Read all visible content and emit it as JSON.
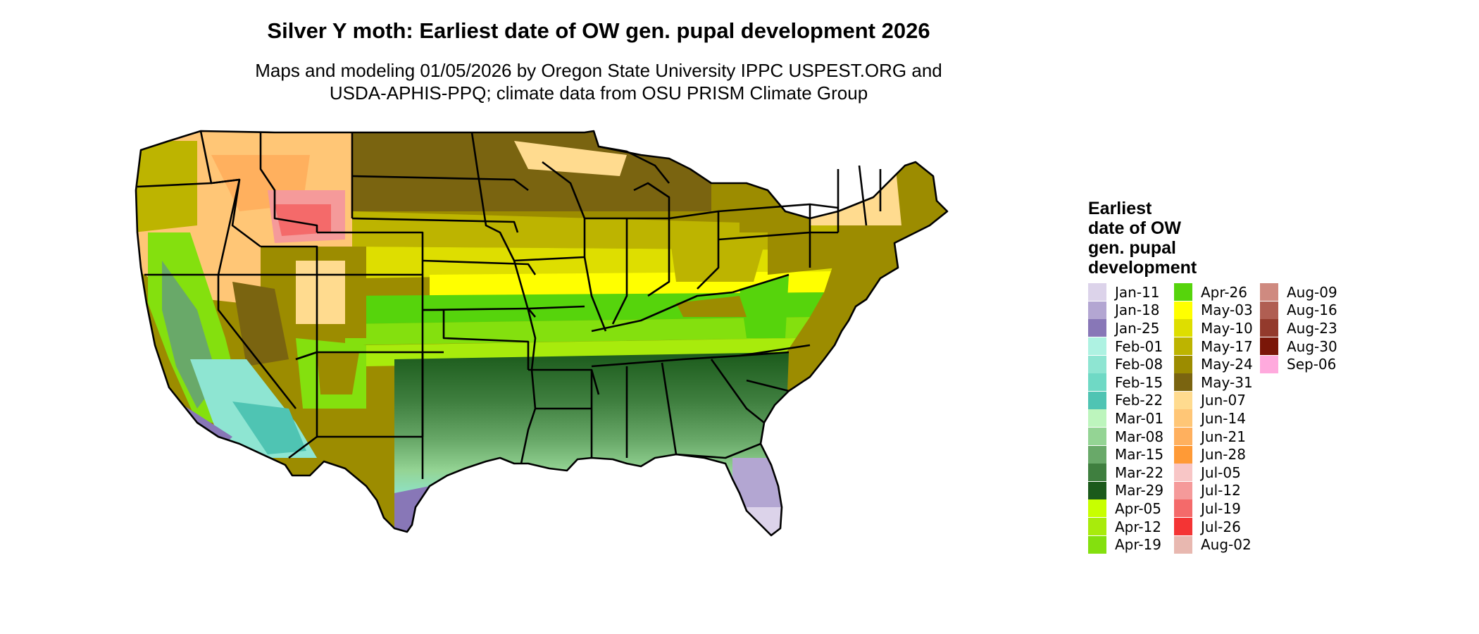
{
  "title": "Silver Y moth: Earliest date of OW gen. pupal development 2026",
  "subtitle_line1": "Maps and modeling 01/05/2026 by Oregon State University IPPC USPEST.ORG and",
  "subtitle_line2": "USDA-APHIS-PPQ; climate data from OSU PRISM Climate Group",
  "legend": {
    "title_lines": [
      "Earliest",
      "date of OW",
      "gen. pupal",
      "development"
    ],
    "items": [
      {
        "label": "Jan-11",
        "color": "#dcd3ea"
      },
      {
        "label": "Jan-18",
        "color": "#b3a6d2"
      },
      {
        "label": "Jan-25",
        "color": "#8877b7"
      },
      {
        "label": "Feb-01",
        "color": "#aef2e2"
      },
      {
        "label": "Feb-08",
        "color": "#8ee5d2"
      },
      {
        "label": "Feb-15",
        "color": "#6fd9c5"
      },
      {
        "label": "Feb-22",
        "color": "#4fc4b3"
      },
      {
        "label": "Mar-01",
        "color": "#bdf5bd"
      },
      {
        "label": "Mar-08",
        "color": "#94d494"
      },
      {
        "label": "Mar-15",
        "color": "#69a969"
      },
      {
        "label": "Mar-22",
        "color": "#3f7f3f"
      },
      {
        "label": "Mar-29",
        "color": "#1b5a1b"
      },
      {
        "label": "Apr-05",
        "color": "#c8ff00"
      },
      {
        "label": "Apr-12",
        "color": "#a8eb0c"
      },
      {
        "label": "Apr-19",
        "color": "#84e00e"
      },
      {
        "label": "Apr-26",
        "color": "#56d40c"
      },
      {
        "label": "May-03",
        "color": "#ffff00"
      },
      {
        "label": "May-10",
        "color": "#dede00"
      },
      {
        "label": "May-17",
        "color": "#bdb400"
      },
      {
        "label": "May-24",
        "color": "#9c8c00"
      },
      {
        "label": "May-31",
        "color": "#7a6410"
      },
      {
        "label": "Jun-07",
        "color": "#ffdb8f"
      },
      {
        "label": "Jun-14",
        "color": "#ffc676"
      },
      {
        "label": "Jun-21",
        "color": "#ffb05e"
      },
      {
        "label": "Jun-28",
        "color": "#ff9a36"
      },
      {
        "label": "Jul-05",
        "color": "#f8c6c6"
      },
      {
        "label": "Jul-12",
        "color": "#f59a9a"
      },
      {
        "label": "Jul-19",
        "color": "#f46a6a"
      },
      {
        "label": "Jul-26",
        "color": "#f43434"
      },
      {
        "label": "Aug-02",
        "color": "#e8b8b0"
      },
      {
        "label": "Aug-09",
        "color": "#cf8a80"
      },
      {
        "label": "Aug-16",
        "color": "#b05e52"
      },
      {
        "label": "Aug-23",
        "color": "#933a2c"
      },
      {
        "label": "Aug-30",
        "color": "#7a1608"
      },
      {
        "label": "Sep-06",
        "color": "#ffaadd"
      }
    ]
  }
}
